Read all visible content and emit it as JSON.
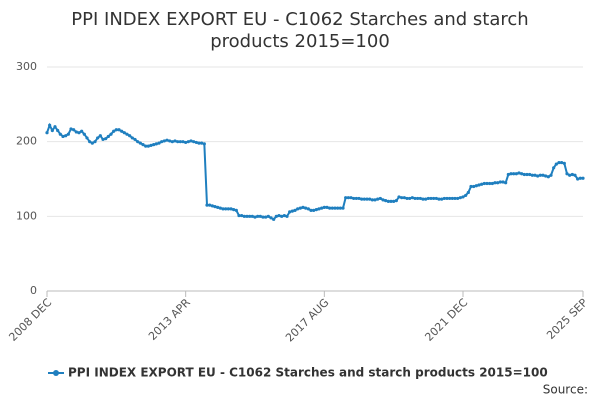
{
  "chart_data": {
    "type": "line",
    "title": [
      "PPI INDEX EXPORT EU - C1062 Starches and starch",
      "products 2015=100"
    ],
    "source": "Source:",
    "categories": [
      "2008 DEC",
      null,
      null,
      null,
      null,
      null,
      null,
      null,
      null,
      null,
      null,
      null,
      null,
      null,
      null,
      null,
      null,
      null,
      null,
      null,
      null,
      null,
      null,
      null,
      null,
      null,
      null,
      null,
      null,
      null,
      null,
      null,
      null,
      null,
      null,
      null,
      null,
      null,
      null,
      null,
      null,
      null,
      null,
      null,
      null,
      null,
      null,
      null,
      null,
      null,
      null,
      null,
      "2013 APR",
      null,
      null,
      null,
      null,
      null,
      null,
      null,
      null,
      null,
      null,
      null,
      null,
      null,
      null,
      null,
      null,
      null,
      null,
      null,
      null,
      null,
      null,
      null,
      null,
      null,
      null,
      null,
      null,
      null,
      null,
      null,
      null,
      null,
      null,
      null,
      null,
      null,
      null,
      null,
      null,
      null,
      null,
      null,
      null,
      null,
      null,
      null,
      null,
      null,
      null,
      null,
      "2017 AUG",
      null,
      null,
      null,
      null,
      null,
      null,
      null,
      null,
      null,
      null,
      null,
      null,
      null,
      null,
      null,
      null,
      null,
      null,
      null,
      null,
      null,
      null,
      null,
      null,
      null,
      null,
      null,
      null,
      null,
      null,
      null,
      null,
      null,
      null,
      null,
      null,
      null,
      null,
      null,
      null,
      null,
      null,
      null,
      null,
      null,
      null,
      null,
      null,
      null,
      null,
      null,
      "2021 DEC",
      null,
      null,
      null,
      null,
      null,
      null,
      null,
      null,
      null,
      null,
      null,
      null,
      null,
      null,
      null,
      null,
      null,
      null,
      null,
      null,
      null,
      null,
      null,
      null,
      null,
      null,
      null,
      null,
      null,
      null,
      null,
      null,
      null,
      null,
      null,
      null,
      null,
      null,
      null,
      null,
      null,
      null,
      null,
      null,
      "2025 SEP"
    ],
    "series": [
      {
        "name": "PPI INDEX EXPORT EU - C1062 Starches and starch products 2015=100",
        "color": "#1f7fbf",
        "values": [
          212,
          222,
          215,
          220,
          215,
          210,
          207,
          208,
          210,
          217,
          216,
          213,
          212,
          214,
          210,
          205,
          200,
          198,
          200,
          205,
          208,
          203,
          204,
          207,
          210,
          214,
          216,
          216,
          214,
          212,
          210,
          208,
          205,
          203,
          200,
          198,
          196,
          194,
          194,
          195,
          196,
          197,
          198,
          200,
          201,
          202,
          201,
          200,
          201,
          200,
          200,
          200,
          199,
          200,
          201,
          200,
          199,
          198,
          198,
          197,
          115,
          115,
          114,
          113,
          112,
          111,
          110,
          110,
          110,
          110,
          109,
          108,
          101,
          101,
          100,
          100,
          100,
          100,
          99,
          100,
          100,
          99,
          99,
          100,
          98,
          96,
          100,
          101,
          100,
          101,
          100,
          106,
          107,
          108,
          110,
          111,
          112,
          111,
          110,
          108,
          108,
          109,
          110,
          111,
          112,
          112,
          111,
          111,
          111,
          111,
          111,
          111,
          125,
          125,
          125,
          124,
          124,
          124,
          123,
          123,
          123,
          123,
          122,
          122,
          123,
          124,
          122,
          121,
          120,
          120,
          120,
          121,
          126,
          125,
          125,
          124,
          124,
          125,
          124,
          124,
          124,
          123,
          123,
          124,
          124,
          124,
          124,
          123,
          123,
          124,
          124,
          124,
          124,
          124,
          124,
          125,
          126,
          128,
          132,
          140,
          140,
          141,
          142,
          143,
          144,
          144,
          144,
          144,
          145,
          145,
          146,
          146,
          145,
          156,
          157,
          157,
          157,
          158,
          157,
          156,
          156,
          156,
          155,
          155,
          154,
          155,
          155,
          154,
          153,
          155,
          165,
          170,
          172,
          172,
          171,
          157,
          155,
          156,
          155,
          150,
          151,
          151
        ]
      }
    ],
    "ylim": [
      0,
      300
    ],
    "yticks": [
      0,
      100,
      200,
      300
    ],
    "grid": true
  }
}
